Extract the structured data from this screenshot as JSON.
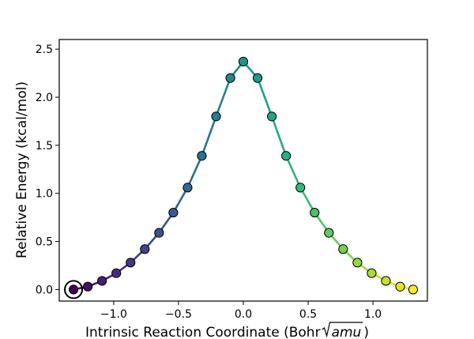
{
  "chart_data": {
    "type": "line",
    "title": "",
    "xlabel_prefix": "Intrinsic Reaction Coordinate (Bohr",
    "xlabel_radicand": "amu",
    "xlabel_suffix": ")",
    "ylabel": "Relative Energy (kcal/mol)",
    "xlim": [
      -1.42,
      1.42
    ],
    "ylim": [
      -0.12,
      2.6
    ],
    "xticks": [
      -1.0,
      -0.5,
      0.0,
      0.5,
      1.0
    ],
    "xtick_labels": [
      "−1.0",
      "−0.5",
      "0.0",
      "0.5",
      "1.0"
    ],
    "yticks": [
      0.0,
      0.5,
      1.0,
      1.5,
      2.0,
      2.5
    ],
    "ytick_labels": [
      "0.0",
      "0.5",
      "1.0",
      "1.5",
      "2.0",
      "2.5"
    ],
    "grid": false,
    "colormap": "viridis",
    "highlighted_point_index": 0,
    "x": [
      -1.31,
      -1.2,
      -1.09,
      -0.98,
      -0.87,
      -0.76,
      -0.65,
      -0.54,
      -0.43,
      -0.32,
      -0.21,
      -0.1,
      0.0,
      0.11,
      0.22,
      0.33,
      0.44,
      0.55,
      0.66,
      0.77,
      0.88,
      0.99,
      1.1,
      1.21,
      1.31
    ],
    "y": [
      0.0,
      0.03,
      0.09,
      0.17,
      0.28,
      0.42,
      0.59,
      0.8,
      1.06,
      1.39,
      1.8,
      2.2,
      2.37,
      2.2,
      1.8,
      1.39,
      1.06,
      0.8,
      0.59,
      0.42,
      0.28,
      0.17,
      0.09,
      0.03,
      0.0
    ]
  }
}
